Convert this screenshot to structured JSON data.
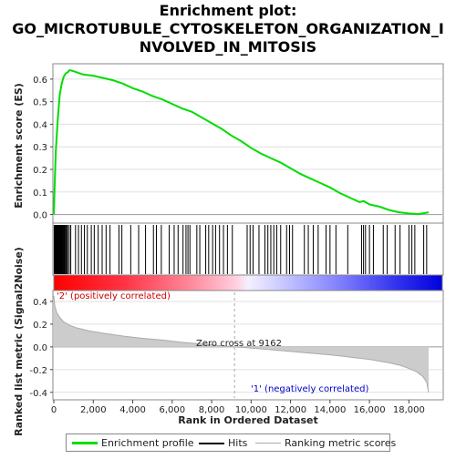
{
  "title_lines": [
    "Enrichment plot:",
    "GO_MICROTUBULE_CYTOSKELETON_ORGANIZATION_I",
    "NVOLVED_IN_MITOSIS"
  ],
  "colors": {
    "es_line": "#00dd00",
    "hits": "#000000",
    "metric_line": "#aaaaaa",
    "pos_label": "#cc0000",
    "neg_label": "#0000cc",
    "heat_red": "#ff0000",
    "heat_blue": "#0000ff"
  },
  "legend": {
    "es": "Enrichment profile",
    "hits": "Hits",
    "metric": "Ranking metric scores"
  },
  "annotations": {
    "positive": "'2' (positively correlated)",
    "negative": "'1' (negatively correlated)",
    "zero_cross": "Zero cross at 9162"
  },
  "chart_data": [
    {
      "type": "line",
      "name": "enrichment-profile",
      "ylabel": "Enrichment score (ES)",
      "xlim": [
        0,
        19000
      ],
      "ylim": [
        -0.03,
        0.66
      ],
      "yticks": [
        0.0,
        0.1,
        0.2,
        0.3,
        0.4,
        0.5,
        0.6
      ],
      "x": [
        0,
        40,
        100,
        200,
        300,
        400,
        500,
        600,
        700,
        800,
        1000,
        1500,
        2000,
        2500,
        3000,
        3500,
        4000,
        4500,
        5000,
        5500,
        6000,
        6500,
        7000,
        7500,
        8000,
        8500,
        9000,
        9500,
        10000,
        10500,
        11000,
        11500,
        12000,
        12500,
        13000,
        13500,
        14000,
        14500,
        15000,
        15500,
        15700,
        16000,
        16500,
        17000,
        17500,
        18000,
        18500,
        19000
      ],
      "y": [
        0.0,
        0.12,
        0.28,
        0.42,
        0.53,
        0.58,
        0.61,
        0.625,
        0.63,
        0.64,
        0.635,
        0.62,
        0.615,
        0.605,
        0.595,
        0.58,
        0.56,
        0.545,
        0.525,
        0.51,
        0.49,
        0.47,
        0.455,
        0.43,
        0.405,
        0.38,
        0.35,
        0.325,
        0.295,
        0.27,
        0.25,
        0.23,
        0.205,
        0.18,
        0.16,
        0.14,
        0.12,
        0.095,
        0.075,
        0.055,
        0.06,
        0.045,
        0.035,
        0.02,
        0.01,
        0.005,
        0.002,
        0.01
      ]
    },
    {
      "type": "line",
      "name": "ranking-metric",
      "xlabel": "Rank in Ordered Dataset",
      "ylabel": "Ranked list metric (Signal2Noise)",
      "xlim": [
        0,
        19000
      ],
      "ylim": [
        -0.45,
        0.48
      ],
      "yticks": [
        -0.4,
        -0.2,
        0.0,
        0.2,
        0.4
      ],
      "xticks": [
        0,
        2000,
        4000,
        6000,
        8000,
        10000,
        12000,
        14000,
        16000,
        18000
      ],
      "xtick_labels": [
        "0",
        "2,000",
        "4,000",
        "6,000",
        "8,000",
        "10,000",
        "12,000",
        "14,000",
        "16,000",
        "18,000"
      ],
      "zero_cross": 9162,
      "x": [
        0,
        50,
        150,
        300,
        500,
        800,
        1200,
        1800,
        2500,
        3500,
        4500,
        5500,
        6500,
        7500,
        8500,
        9162,
        10000,
        11000,
        12000,
        13000,
        14000,
        15000,
        16000,
        17000,
        17500,
        18000,
        18400,
        18700,
        18900,
        19000
      ],
      "y": [
        0.45,
        0.36,
        0.3,
        0.26,
        0.22,
        0.19,
        0.165,
        0.14,
        0.12,
        0.095,
        0.075,
        0.06,
        0.04,
        0.025,
        0.01,
        0.0,
        -0.01,
        -0.025,
        -0.04,
        -0.055,
        -0.07,
        -0.09,
        -0.11,
        -0.14,
        -0.16,
        -0.19,
        -0.22,
        -0.26,
        -0.31,
        -0.4
      ]
    },
    {
      "type": "scatter",
      "name": "hits",
      "xlim": [
        0,
        19000
      ],
      "x": [
        20,
        45,
        70,
        95,
        120,
        150,
        175,
        200,
        230,
        260,
        290,
        320,
        350,
        380,
        410,
        440,
        470,
        510,
        550,
        600,
        650,
        700,
        780,
        860,
        1100,
        1250,
        1400,
        1550,
        1700,
        1900,
        2050,
        2250,
        2450,
        2650,
        2850,
        3300,
        3450,
        3900,
        4300,
        4650,
        5050,
        5200,
        5450,
        5850,
        6100,
        6300,
        6550,
        6700,
        6800,
        6900,
        7250,
        7400,
        7700,
        7850,
        8050,
        8200,
        8400,
        8600,
        8800,
        9050,
        9800,
        9950,
        10100,
        10400,
        10700,
        10850,
        11000,
        11150,
        11300,
        11500,
        11800,
        11950,
        12100,
        12700,
        12900,
        13150,
        13400,
        13800,
        14000,
        14300,
        14900,
        15600,
        15700,
        15800,
        16000,
        16200,
        16700,
        16900,
        17300,
        17550,
        18000,
        18150,
        18300,
        18750,
        18900
      ]
    }
  ]
}
